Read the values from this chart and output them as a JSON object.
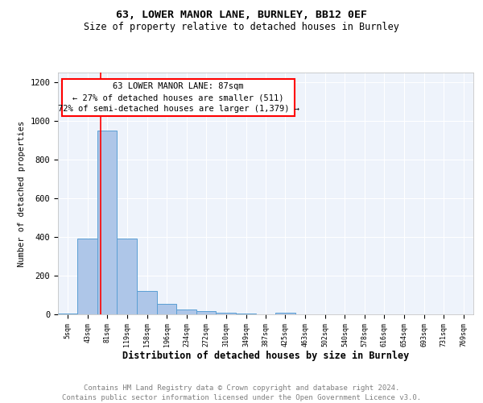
{
  "title": "63, LOWER MANOR LANE, BURNLEY, BB12 0EF",
  "subtitle": "Size of property relative to detached houses in Burnley",
  "xlabel": "Distribution of detached houses by size in Burnley",
  "ylabel": "Number of detached properties",
  "footer_line1": "Contains HM Land Registry data © Crown copyright and database right 2024.",
  "footer_line2": "Contains public sector information licensed under the Open Government Licence v3.0.",
  "bins": [
    5,
    43,
    81,
    119,
    158,
    196,
    234,
    272,
    310,
    349,
    387,
    425,
    463,
    502,
    540,
    578,
    616,
    654,
    693,
    731,
    769
  ],
  "bar_heights": [
    5,
    390,
    950,
    390,
    120,
    55,
    25,
    15,
    10,
    5,
    0,
    10,
    0,
    0,
    0,
    0,
    0,
    0,
    0,
    0
  ],
  "bar_color": "#aec6e8",
  "bar_edge_color": "#5a9fd4",
  "red_line_x": 87,
  "ylim": [
    0,
    1250
  ],
  "yticks": [
    0,
    200,
    400,
    600,
    800,
    1000,
    1200
  ],
  "title_fontsize": 9.5,
  "subtitle_fontsize": 8.5,
  "xlabel_fontsize": 8.5,
  "ylabel_fontsize": 7.5,
  "xtick_fontsize": 6,
  "ytick_fontsize": 7.5,
  "annotation_fontsize": 7.5,
  "footer_fontsize": 6.5,
  "background_color": "#ffffff",
  "plot_bg_color": "#eef3fb"
}
